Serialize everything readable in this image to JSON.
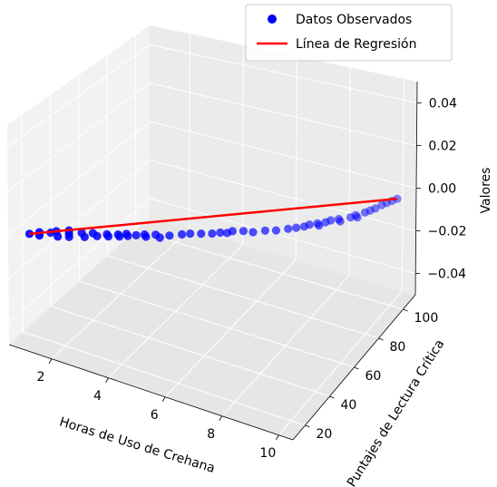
{
  "chart_data": {
    "type": "scatter",
    "projection": "3d",
    "xlabel": "Horas de Uso de Crehana",
    "ylabel": "Puntajes de Lectura Crítica",
    "zlabel": "Valores",
    "xlim": [
      0.5,
      10.5
    ],
    "ylim": [
      10,
      110
    ],
    "zlim": [
      -0.05,
      0.05
    ],
    "x_ticks": [
      "2",
      "4",
      "6",
      "8",
      "10"
    ],
    "y_ticks": [
      "20",
      "40",
      "60",
      "80",
      "100"
    ],
    "z_ticks": [
      "−0.04",
      "−0.02",
      "0.00",
      "0.02",
      "0.04"
    ],
    "grid": true,
    "legend_position": "top-right",
    "colors": {
      "points": "#0000ff",
      "line": "#ff0000"
    },
    "series": [
      {
        "name": "Datos Observados",
        "type": "scatter",
        "points": [
          [
            1.0,
            15,
            0
          ],
          [
            1.2,
            18,
            0
          ],
          [
            1.3,
            16,
            0
          ],
          [
            1.5,
            20,
            0
          ],
          [
            1.6,
            22,
            0
          ],
          [
            1.8,
            19,
            0
          ],
          [
            1.9,
            25,
            0
          ],
          [
            2.0,
            23,
            0
          ],
          [
            2.1,
            21,
            0
          ],
          [
            2.3,
            26,
            0
          ],
          [
            2.5,
            24,
            0
          ],
          [
            2.6,
            28,
            0
          ],
          [
            2.8,
            27,
            0
          ],
          [
            3.0,
            30,
            0
          ],
          [
            3.1,
            29,
            0
          ],
          [
            3.3,
            32,
            0
          ],
          [
            3.4,
            31,
            0
          ],
          [
            3.5,
            34,
            0
          ],
          [
            3.6,
            33,
            0
          ],
          [
            3.8,
            35,
            0
          ],
          [
            4.0,
            37,
            0
          ],
          [
            4.1,
            36,
            0
          ],
          [
            4.3,
            39,
            0
          ],
          [
            4.5,
            38,
            0
          ],
          [
            4.7,
            41,
            0
          ],
          [
            5.0,
            44,
            0
          ],
          [
            5.2,
            46,
            0
          ],
          [
            5.5,
            48,
            0
          ],
          [
            5.8,
            50,
            0
          ],
          [
            6.0,
            52,
            0
          ],
          [
            6.2,
            53,
            0
          ],
          [
            6.3,
            55,
            0
          ],
          [
            6.6,
            57,
            0
          ],
          [
            6.9,
            58,
            0
          ],
          [
            7.2,
            61,
            0
          ],
          [
            7.5,
            63,
            0
          ],
          [
            7.8,
            66,
            0
          ],
          [
            8.0,
            68,
            0
          ],
          [
            8.2,
            70,
            0
          ],
          [
            8.3,
            72,
            0
          ],
          [
            8.5,
            74,
            0
          ],
          [
            8.6,
            73,
            0
          ],
          [
            8.7,
            76,
            0
          ],
          [
            8.8,
            78,
            0
          ],
          [
            9.0,
            80,
            0
          ],
          [
            9.1,
            79,
            0
          ],
          [
            9.3,
            83,
            0
          ],
          [
            9.4,
            85,
            0
          ],
          [
            9.5,
            84,
            0
          ],
          [
            9.6,
            88,
            0
          ],
          [
            9.7,
            90,
            0
          ],
          [
            9.8,
            92,
            0
          ],
          [
            9.9,
            95,
            0
          ],
          [
            10.0,
            97,
            0
          ],
          [
            10.1,
            99,
            0
          ],
          [
            10.2,
            101,
            0
          ]
        ]
      },
      {
        "name": "Línea de Regresión",
        "type": "line",
        "points": [
          [
            1.0,
            15,
            0
          ],
          [
            10.2,
            101,
            0
          ]
        ]
      }
    ]
  }
}
